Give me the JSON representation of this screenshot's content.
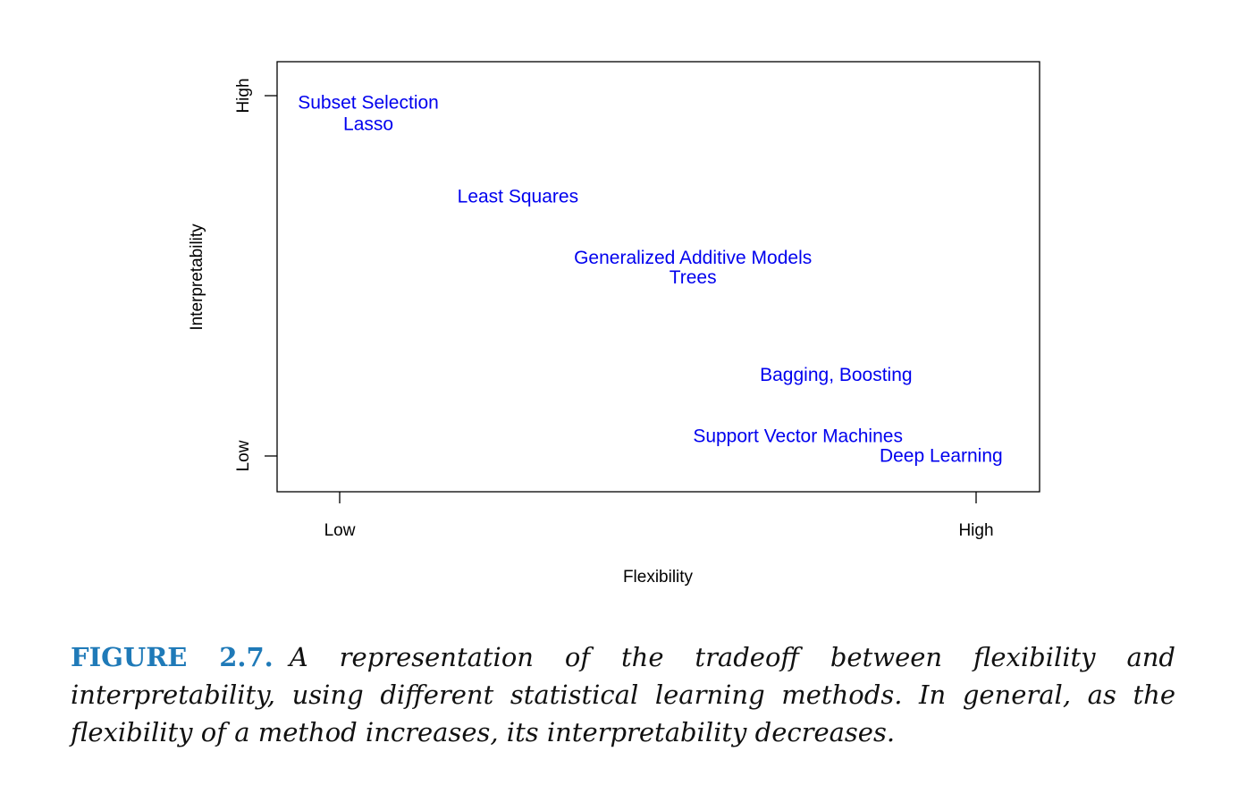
{
  "chart_data": {
    "type": "scatter",
    "title": "",
    "xlabel": "Flexibility",
    "ylabel": "Interpretability",
    "x_ticks": [
      "Low",
      "High"
    ],
    "y_ticks": [
      "Low",
      "High"
    ],
    "xlim": [
      0,
      1
    ],
    "ylim": [
      0,
      1
    ],
    "grid": false,
    "label_color": "#0000ee",
    "points": [
      {
        "label": "Subset Selection",
        "x": 0.045,
        "y": 0.98
      },
      {
        "label": "Lasso",
        "x": 0.045,
        "y": 0.92
      },
      {
        "label": "Least Squares",
        "x": 0.28,
        "y": 0.72
      },
      {
        "label": "Generalized Additive Models",
        "x": 0.555,
        "y": 0.55
      },
      {
        "label": "Trees",
        "x": 0.555,
        "y": 0.495
      },
      {
        "label": "Bagging, Boosting",
        "x": 0.78,
        "y": 0.225
      },
      {
        "label": "Support Vector Machines",
        "x": 0.72,
        "y": 0.055
      },
      {
        "label": "Deep Learning",
        "x": 0.945,
        "y": 0.0
      }
    ]
  },
  "caption": {
    "label": "FIGURE 2.7.",
    "text": "A representation of the tradeoff between flexibility and interpretability, using different statistical learning methods. In general, as the flexibility of a method increases, its interpretability decreases.",
    "label_color": "#1f7ab8"
  }
}
